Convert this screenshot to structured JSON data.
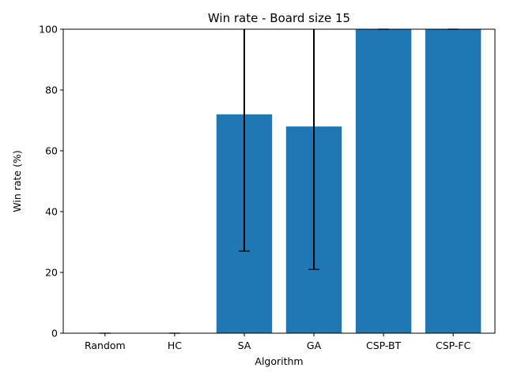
{
  "chart_data": {
    "type": "bar",
    "title": "Win rate - Board size 15",
    "xlabel": "Algorithm",
    "ylabel": "Win rate (%)",
    "categories": [
      "Random",
      "HC",
      "SA",
      "GA",
      "CSP-BT",
      "CSP-FC"
    ],
    "values": [
      0,
      0,
      72,
      68,
      100,
      100
    ],
    "error_low": [
      0,
      0,
      27,
      21,
      100,
      100
    ],
    "error_high": [
      0,
      0,
      117,
      115,
      100,
      100
    ],
    "ylim": [
      0,
      100
    ],
    "yticks": [
      0,
      20,
      40,
      60,
      80,
      100
    ],
    "grid": false,
    "bar_color": "#1f77b4",
    "error_color": "#000000"
  }
}
